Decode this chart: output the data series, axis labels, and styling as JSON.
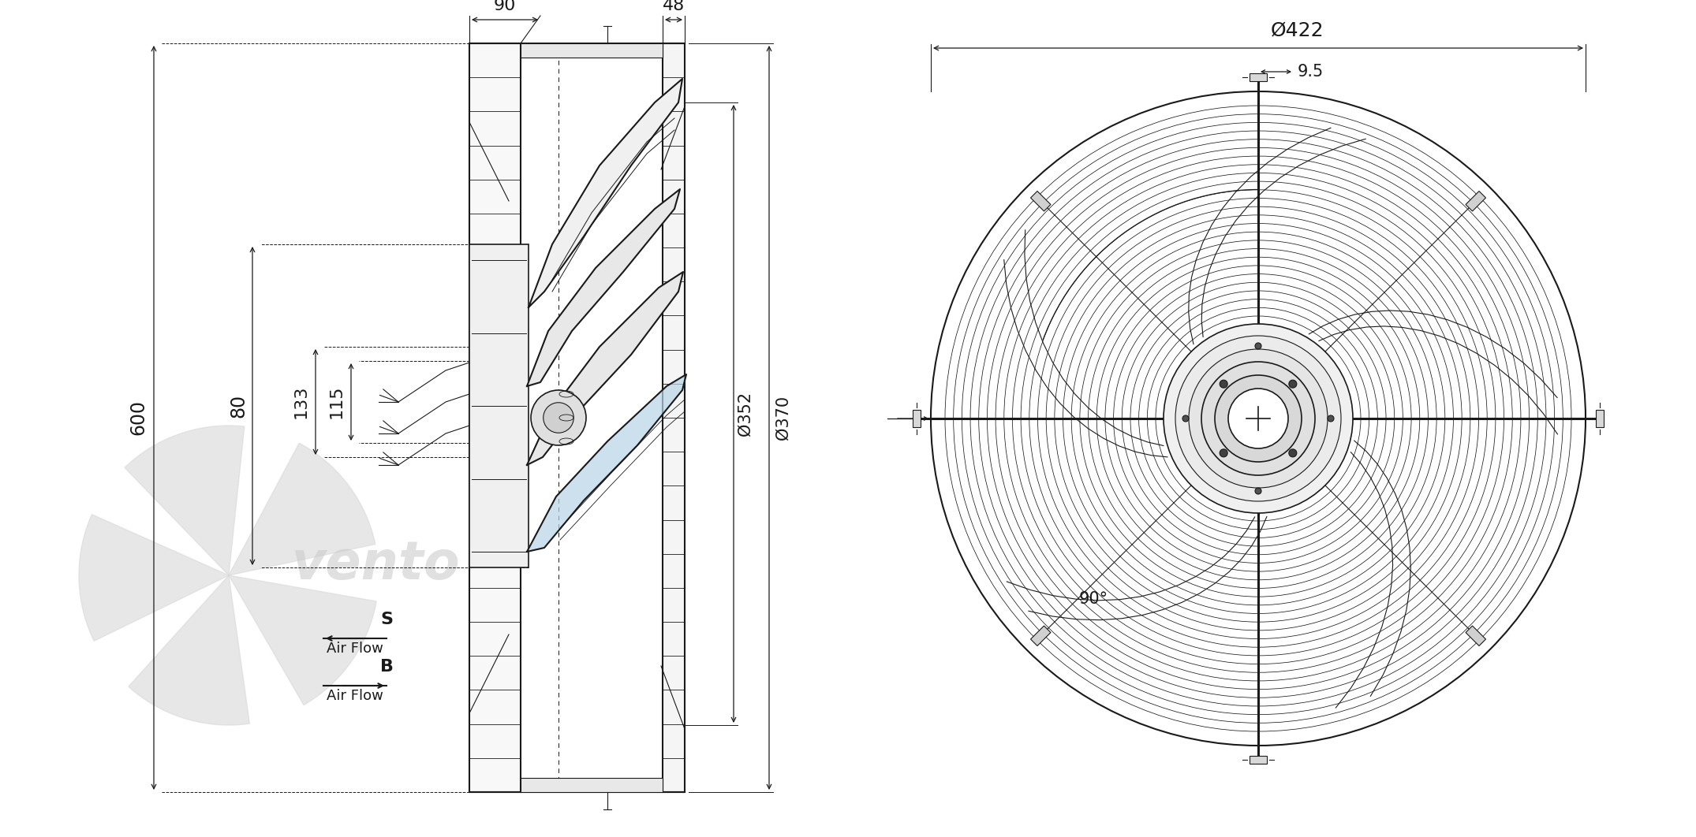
{
  "bg_color": "#ffffff",
  "line_color": "#1a1a1a",
  "dim_color": "#1a1a1a",
  "light_blue": "#b8d4e8",
  "watermark_gray": "#d8d8d8",
  "figsize": [
    21.5,
    10.62
  ],
  "dpi": 100,
  "dimensions": {
    "d422": "Ø422",
    "d352": "Ø352",
    "d370": "Ø370",
    "w90": "90",
    "w48": "48",
    "h600": "600",
    "h80": "80",
    "h133": "133",
    "h115": "115",
    "r9_5": "9.5",
    "angle90": "90°"
  }
}
